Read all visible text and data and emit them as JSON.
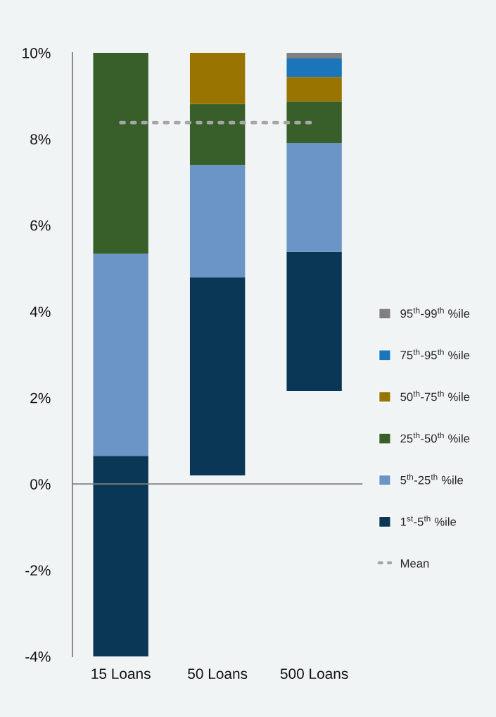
{
  "chart_data": {
    "type": "bar",
    "categories": [
      "15 Loans",
      "50 Loans",
      "500 Loans"
    ],
    "series": [
      {
        "name": "1$^{st}$-5$^{th}$ %ile",
        "color": "#0a3756",
        "base": [
          -4,
          0.2,
          2.16
        ],
        "values": [
          4.65,
          4.59,
          3.22
        ]
      },
      {
        "name": "5$^{th}$-25$^{th}$ %ile",
        "color": "#6a95c6",
        "base": [
          0.65,
          4.79,
          5.38
        ],
        "values": [
          4.69,
          2.61,
          2.53
        ]
      },
      {
        "name": "25$^{th}$-50$^{th}$ %ile",
        "color": "#385f2a",
        "base": [
          5.34,
          7.4,
          7.91
        ],
        "values": [
          4.66,
          1.41,
          0.96
        ]
      },
      {
        "name": "50$^{th}$-75$^{th}$ %ile",
        "color": "#9a7400",
        "base": [
          null,
          8.81,
          8.87
        ],
        "values": [
          null,
          1.19,
          0.57
        ]
      },
      {
        "name": "75$^{th}$-95$^{th}$ %ile",
        "color": "#1a75bb",
        "base": [
          null,
          null,
          9.44
        ],
        "values": [
          null,
          null,
          0.43
        ]
      },
      {
        "name": "95$^{th}$-99$^{th}$ %ile",
        "color": "#808080",
        "base": [
          null,
          null,
          9.87
        ],
        "values": [
          null,
          null,
          0.13
        ]
      },
      {
        "name": "Mean",
        "type": "line",
        "color": "#a6a6a6",
        "line_style": "dotted",
        "values": [
          8.38,
          8.38,
          8.38
        ]
      }
    ],
    "ylim": [
      -4,
      10
    ],
    "yticks": [
      {
        "value": -4,
        "label": "-4%"
      },
      {
        "value": -2,
        "label": "-2%"
      },
      {
        "value": 0,
        "label": "0%"
      },
      {
        "value": 2,
        "label": "2%"
      },
      {
        "value": 4,
        "label": "4%"
      },
      {
        "value": 6,
        "label": "6%"
      },
      {
        "value": 8,
        "label": "8%"
      },
      {
        "value": 10,
        "label": "10%"
      }
    ],
    "ref_lines": [
      {
        "axis": "y",
        "value": 0,
        "color": "#808080"
      }
    ],
    "grid": false,
    "legend": "right"
  }
}
